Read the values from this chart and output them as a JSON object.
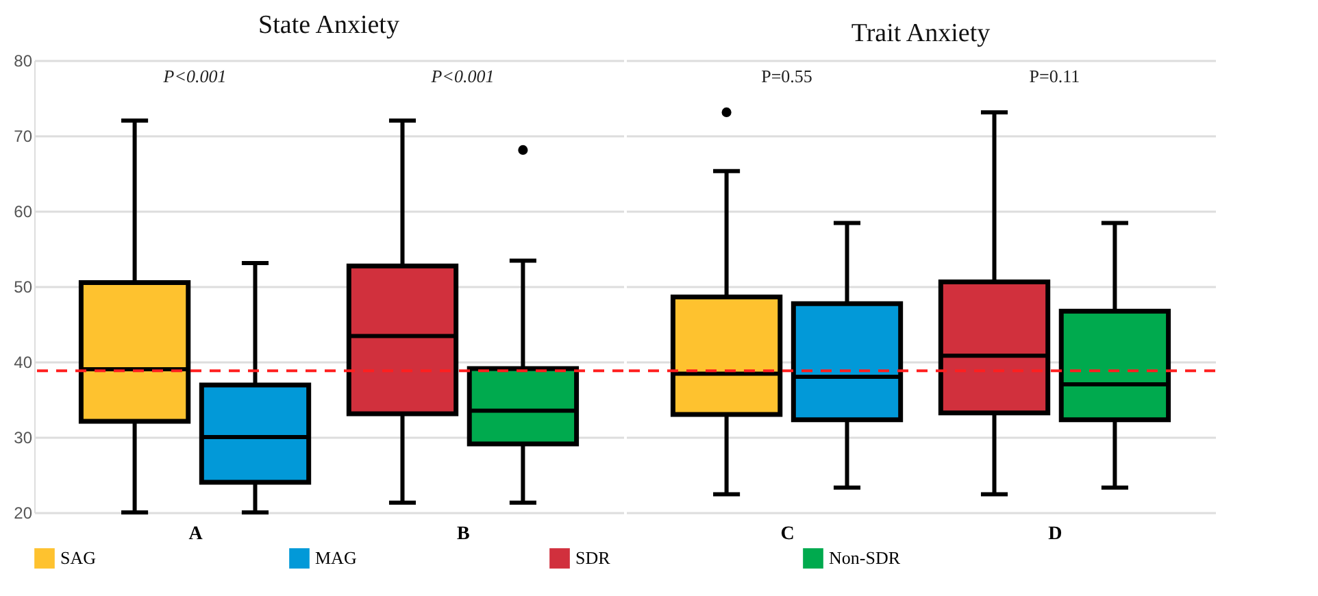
{
  "chart_data": [
    {
      "type": "box",
      "title": "State Anxiety",
      "categories": [
        "A",
        "B"
      ],
      "ylim": [
        20,
        80
      ],
      "yticks": [
        20,
        30,
        40,
        50,
        60,
        70,
        80
      ],
      "grid": "y",
      "legend": "bottom",
      "series": [
        {
          "name": "SAG",
          "color": "#fec22f",
          "boxes": [
            {
              "low": 20,
              "q1": 32.1,
              "median": 39.0,
              "q3": 50.5,
              "high": 72
            },
            null
          ]
        },
        {
          "name": "MAG",
          "color": "#0299d8",
          "boxes": [
            {
              "low": 20,
              "q1": 24.0,
              "median": 30.0,
              "q3": 36.9,
              "high": 53.1
            },
            null
          ]
        },
        {
          "name": "SDR",
          "color": "#d1303d",
          "boxes": [
            null,
            {
              "low": 21.3,
              "q1": 33.1,
              "median": 43.4,
              "q3": 52.7,
              "high": 72
            }
          ]
        },
        {
          "name": "Non-SDR",
          "color": "#00aa4e",
          "boxes": [
            null,
            {
              "low": 21.3,
              "q1": 29.1,
              "median": 33.5,
              "q3": 39.1,
              "high": 53.4,
              "outliers": [
                68.1
              ]
            }
          ]
        }
      ],
      "ref_lines": [
        {
          "axis": "y",
          "value": 38.8,
          "color": "#ff1f1f",
          "line_style": "dashed"
        }
      ],
      "annotations": [
        "P<0.001",
        "P<0.001"
      ]
    },
    {
      "type": "box",
      "title": "Trait Anxiety",
      "categories": [
        "C",
        "D"
      ],
      "ylim": [
        20,
        80
      ],
      "yticks": [
        20,
        30,
        40,
        50,
        60,
        70,
        80
      ],
      "grid": "y",
      "legend": "bottom",
      "tick_labels": "x",
      "series": [
        {
          "name": "SAG",
          "color": "#fec22f",
          "boxes": [
            {
              "low": 22.4,
              "q1": 33.0,
              "median": 38.4,
              "q3": 48.6,
              "high": 65.3,
              "outliers": [
                73.1
              ]
            },
            null
          ]
        },
        {
          "name": "MAG",
          "color": "#0299d8",
          "boxes": [
            {
              "low": 23.3,
              "q1": 32.3,
              "median": 38.0,
              "q3": 47.7,
              "high": 58.4
            },
            null
          ]
        },
        {
          "name": "SDR",
          "color": "#d1303d",
          "boxes": [
            null,
            {
              "low": 22.4,
              "q1": 33.2,
              "median": 40.8,
              "q3": 50.6,
              "high": 73.1
            }
          ]
        },
        {
          "name": "Non-SDR",
          "color": "#00aa4e",
          "boxes": [
            null,
            {
              "low": 23.3,
              "q1": 32.3,
              "median": 37.0,
              "q3": 46.7,
              "high": 58.4
            }
          ]
        }
      ],
      "ref_lines": [
        {
          "axis": "y",
          "value": 38.8,
          "color": "#ff1f1f",
          "line_style": "dashed"
        }
      ],
      "annotations": [
        "P=0.55",
        "P=0.11"
      ]
    }
  ]
}
